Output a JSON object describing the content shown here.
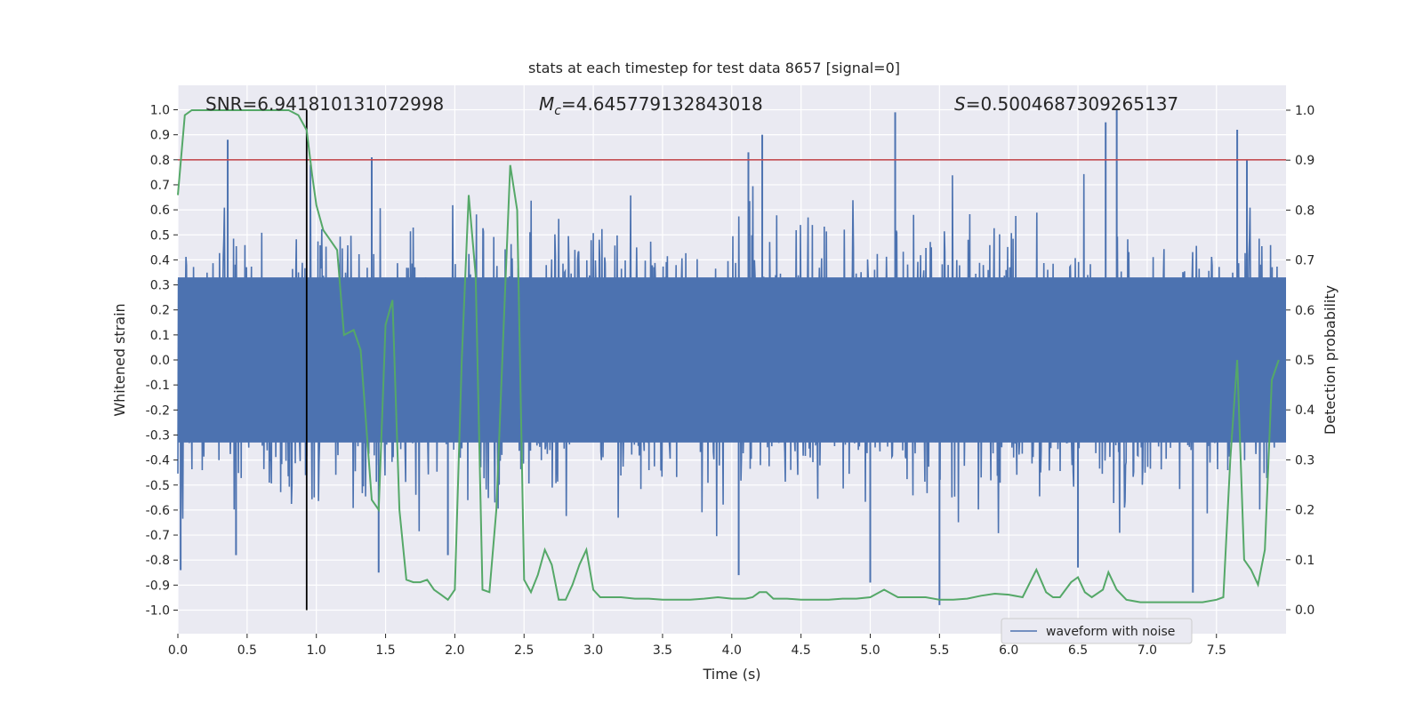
{
  "chart_data": {
    "type": "line",
    "title": "stats at each timestep for test data 8657 [signal=0]",
    "xlabel": "Time (s)",
    "ylabel_left": "Whitened strain",
    "ylabel_right": "Detection probability",
    "xlim": [
      0,
      8.0
    ],
    "ylim_left": [
      -1.1,
      1.1
    ],
    "ylim_right": [
      -0.05,
      1.05
    ],
    "x_ticks": [
      "0.0",
      "0.5",
      "1.0",
      "1.5",
      "2.0",
      "2.5",
      "3.0",
      "3.5",
      "4.0",
      "4.5",
      "5.0",
      "5.5",
      "6.0",
      "6.5",
      "7.0",
      "7.5"
    ],
    "y_left_ticks": [
      "-1.0",
      "-0.9",
      "-0.8",
      "-0.7",
      "-0.6",
      "-0.5",
      "-0.4",
      "-0.3",
      "-0.2",
      "-0.1",
      "0.0",
      "0.1",
      "0.2",
      "0.3",
      "0.4",
      "0.5",
      "0.6",
      "0.7",
      "0.8",
      "0.9",
      "1.0"
    ],
    "y_right_ticks": [
      "0.0",
      "0.1",
      "0.2",
      "0.3",
      "0.4",
      "0.5",
      "0.6",
      "0.7",
      "0.8",
      "0.9",
      "1.0"
    ],
    "grid": true,
    "legend": {
      "placement": "lower-right",
      "entries": [
        "waveform with noise"
      ]
    },
    "annotations": {
      "snr": "SNR=6.941810131072998",
      "mc_symbol": "M",
      "mc_sub": "c",
      "mc_value": "=4.645779132843018",
      "s_symbol": "S",
      "s_value": "=0.5004687309265137"
    },
    "threshold": {
      "value": 0.8,
      "axis": "left",
      "color": "#c44e52"
    },
    "vline": {
      "x": 0.93,
      "y_range": [
        -1.0,
        1.0
      ],
      "color": "#000000"
    },
    "colors": {
      "waveform": "#4c72b0",
      "probability": "#55a868",
      "background": "#eaeaf2",
      "grid": "#ffffff"
    },
    "waveform": {
      "description_values": "whitened strain noise envelope",
      "n_samples": 2048,
      "core_amplitude": 0.3,
      "spike_points": [
        {
          "x": 0.36,
          "y": 0.88
        },
        {
          "x": 0.02,
          "y": -0.84
        },
        {
          "x": 1.4,
          "y": 0.81
        },
        {
          "x": 1.45,
          "y": -0.85
        },
        {
          "x": 1.95,
          "y": -0.78
        },
        {
          "x": 4.22,
          "y": 0.9
        },
        {
          "x": 4.12,
          "y": 0.83
        },
        {
          "x": 4.05,
          "y": -0.86
        },
        {
          "x": 5.18,
          "y": 0.99
        },
        {
          "x": 5.0,
          "y": -0.89
        },
        {
          "x": 5.5,
          "y": -0.98
        },
        {
          "x": 6.78,
          "y": 1.0
        },
        {
          "x": 6.7,
          "y": 0.95
        },
        {
          "x": 6.5,
          "y": -0.83
        },
        {
          "x": 7.33,
          "y": -0.93
        },
        {
          "x": 7.65,
          "y": 0.92
        },
        {
          "x": 7.72,
          "y": 0.8
        },
        {
          "x": 0.42,
          "y": -0.78
        }
      ]
    },
    "probability": {
      "x": [
        0.0,
        0.05,
        0.1,
        0.15,
        0.2,
        0.3,
        0.4,
        0.5,
        0.6,
        0.7,
        0.8,
        0.87,
        0.93,
        0.97,
        1.0,
        1.05,
        1.1,
        1.15,
        1.2,
        1.27,
        1.32,
        1.4,
        1.45,
        1.5,
        1.55,
        1.6,
        1.65,
        1.7,
        1.75,
        1.8,
        1.85,
        1.9,
        1.95,
        2.0,
        2.05,
        2.1,
        2.15,
        2.2,
        2.25,
        2.3,
        2.35,
        2.4,
        2.45,
        2.5,
        2.55,
        2.6,
        2.65,
        2.7,
        2.75,
        2.8,
        2.85,
        2.9,
        2.95,
        3.0,
        3.05,
        3.1,
        3.2,
        3.3,
        3.4,
        3.5,
        3.6,
        3.7,
        3.8,
        3.9,
        4.0,
        4.1,
        4.15,
        4.2,
        4.25,
        4.3,
        4.4,
        4.5,
        4.6,
        4.7,
        4.8,
        4.9,
        5.0,
        5.1,
        5.2,
        5.3,
        5.4,
        5.5,
        5.6,
        5.7,
        5.8,
        5.9,
        6.0,
        6.1,
        6.2,
        6.27,
        6.32,
        6.37,
        6.45,
        6.5,
        6.55,
        6.6,
        6.68,
        6.72,
        6.78,
        6.85,
        6.95,
        7.1,
        7.2,
        7.3,
        7.4,
        7.5,
        7.55,
        7.6,
        7.65,
        7.7,
        7.75,
        7.8,
        7.85,
        7.9,
        7.95
      ],
      "y": [
        0.83,
        0.99,
        1.0,
        1.0,
        1.0,
        1.0,
        1.0,
        1.0,
        1.0,
        1.0,
        1.0,
        0.99,
        0.96,
        0.87,
        0.81,
        0.76,
        0.74,
        0.72,
        0.55,
        0.56,
        0.52,
        0.22,
        0.2,
        0.57,
        0.62,
        0.2,
        0.06,
        0.055,
        0.055,
        0.06,
        0.04,
        0.03,
        0.02,
        0.04,
        0.5,
        0.83,
        0.67,
        0.04,
        0.035,
        0.2,
        0.55,
        0.89,
        0.8,
        0.06,
        0.035,
        0.07,
        0.12,
        0.09,
        0.02,
        0.02,
        0.05,
        0.09,
        0.12,
        0.04,
        0.025,
        0.025,
        0.025,
        0.022,
        0.022,
        0.02,
        0.02,
        0.02,
        0.022,
        0.025,
        0.022,
        0.022,
        0.025,
        0.035,
        0.035,
        0.022,
        0.022,
        0.02,
        0.02,
        0.02,
        0.022,
        0.022,
        0.025,
        0.04,
        0.025,
        0.025,
        0.025,
        0.02,
        0.02,
        0.022,
        0.028,
        0.032,
        0.03,
        0.025,
        0.08,
        0.035,
        0.025,
        0.025,
        0.055,
        0.065,
        0.035,
        0.025,
        0.04,
        0.075,
        0.04,
        0.02,
        0.015,
        0.015,
        0.015,
        0.015,
        0.015,
        0.02,
        0.025,
        0.3,
        0.5,
        0.1,
        0.08,
        0.05,
        0.12,
        0.46,
        0.5
      ]
    }
  }
}
